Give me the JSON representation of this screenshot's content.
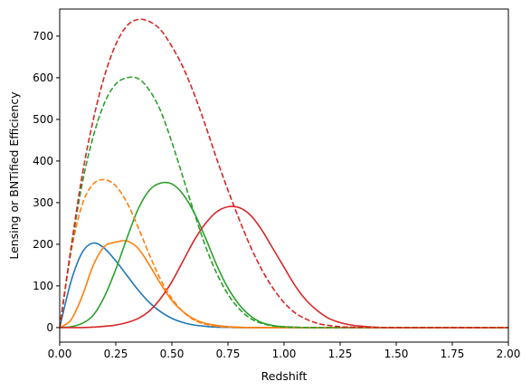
{
  "chart_data": {
    "type": "line",
    "title": "",
    "xlabel": "Redshift",
    "ylabel": "Lensing or BNTified Efficiency",
    "xlim": [
      0.0,
      2.0
    ],
    "ylim": [
      -35,
      765
    ],
    "xticks": [
      "0.00",
      "0.25",
      "0.50",
      "0.75",
      "1.00",
      "1.25",
      "1.50",
      "1.75",
      "2.00"
    ],
    "yticks": [
      "0",
      "100",
      "200",
      "300",
      "400",
      "500",
      "600",
      "700"
    ],
    "grid": false,
    "legend": "none",
    "x": [
      0.0,
      0.05,
      0.1,
      0.15,
      0.2,
      0.25,
      0.3,
      0.35,
      0.4,
      0.45,
      0.5,
      0.55,
      0.6,
      0.65,
      0.7,
      0.75,
      0.8,
      0.85,
      0.9,
      0.95,
      1.0,
      1.05,
      1.1,
      1.15,
      1.2,
      1.25,
      1.3,
      1.35,
      1.4,
      1.45,
      1.5,
      1.6,
      1.7,
      1.8,
      1.9,
      2.0
    ],
    "series": [
      {
        "color": "#1f77b4",
        "style": "solid",
        "values": [
          0,
          110,
          180,
          203,
          190,
          160,
          125,
          90,
          60,
          38,
          22,
          12,
          6,
          3,
          1,
          0.5,
          0,
          0,
          0,
          0,
          0,
          0,
          0,
          0,
          0,
          0,
          0,
          0,
          0,
          0,
          0,
          0,
          0,
          0,
          0,
          0
        ]
      },
      {
        "color": "#ff7f0e",
        "style": "solid",
        "values": [
          0,
          18,
          75,
          150,
          195,
          205,
          208,
          190,
          150,
          105,
          65,
          38,
          20,
          10,
          5,
          2,
          1,
          0,
          0,
          0,
          0,
          0,
          0,
          0,
          0,
          0,
          0,
          0,
          0,
          0,
          0,
          0,
          0,
          0,
          0,
          0
        ]
      },
      {
        "color": "#2ca02c",
        "style": "solid",
        "values": [
          0,
          2,
          10,
          30,
          75,
          140,
          215,
          285,
          330,
          347,
          345,
          320,
          275,
          215,
          150,
          95,
          55,
          28,
          12,
          5,
          2,
          1,
          0,
          0,
          0,
          0,
          0,
          0,
          0,
          0,
          0,
          0,
          0,
          0,
          0,
          0
        ]
      },
      {
        "color": "#d62728",
        "style": "solid",
        "values": [
          0,
          0,
          0,
          1,
          3,
          6,
          12,
          22,
          40,
          70,
          110,
          160,
          210,
          250,
          278,
          290,
          288,
          270,
          235,
          190,
          145,
          100,
          65,
          40,
          22,
          12,
          6,
          3,
          1,
          0,
          0,
          0,
          0,
          0,
          0,
          0
        ]
      },
      {
        "color": "#ff7f0e",
        "style": "dashed",
        "values": [
          0,
          180,
          295,
          345,
          355,
          340,
          300,
          240,
          175,
          115,
          70,
          38,
          18,
          8,
          3,
          1,
          0,
          0,
          0,
          0,
          0,
          0,
          0,
          0,
          0,
          0,
          0,
          0,
          0,
          0,
          0,
          0,
          0,
          0,
          0,
          0
        ]
      },
      {
        "color": "#2ca02c",
        "style": "dashed",
        "values": [
          0,
          185,
          345,
          460,
          540,
          585,
          600,
          598,
          570,
          520,
          445,
          360,
          275,
          195,
          130,
          80,
          45,
          22,
          10,
          4,
          1.5,
          0.5,
          0,
          0,
          0,
          0,
          0,
          0,
          0,
          0,
          0,
          0,
          0,
          0,
          0,
          0
        ]
      },
      {
        "color": "#d62728",
        "style": "dashed",
        "values": [
          0,
          190,
          365,
          500,
          605,
          680,
          725,
          740,
          735,
          715,
          675,
          625,
          560,
          485,
          405,
          330,
          260,
          195,
          140,
          95,
          60,
          35,
          20,
          10,
          5,
          2,
          1,
          0.5,
          0,
          0,
          0,
          0,
          0,
          0,
          0,
          0
        ]
      }
    ]
  }
}
